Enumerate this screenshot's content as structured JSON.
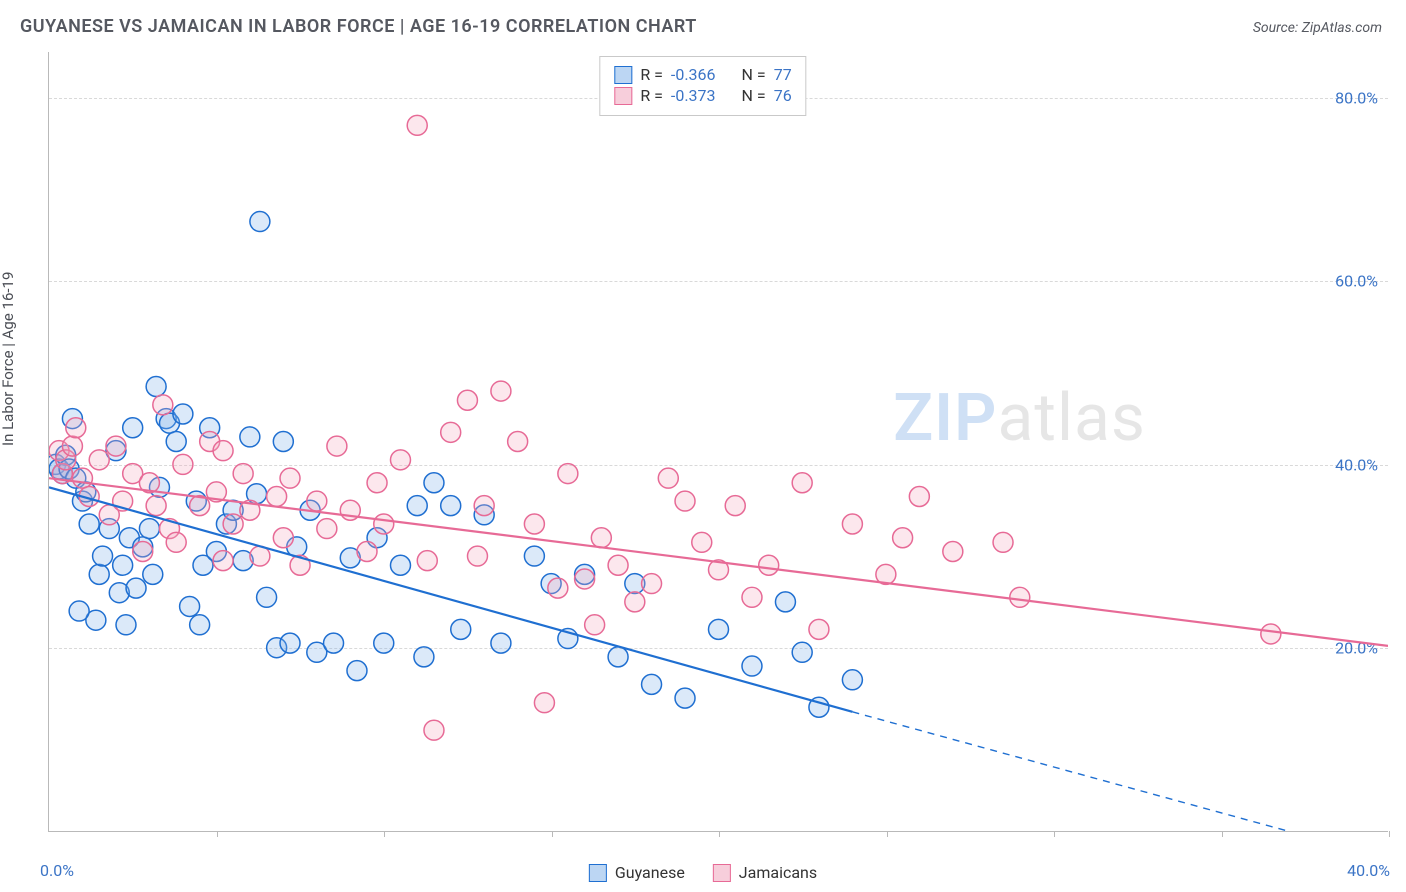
{
  "title": "GUYANESE VS JAMAICAN IN LABOR FORCE | AGE 16-19 CORRELATION CHART",
  "source_label": "Source:",
  "source_value": "ZipAtlas.com",
  "y_axis_title": "In Labor Force | Age 16-19",
  "watermark_a": "ZIP",
  "watermark_b": "atlas",
  "chart": {
    "type": "scatter",
    "background_color": "#ffffff",
    "grid_color": "#d9d9d9",
    "axis_color": "#b9b9b9",
    "tick_label_color": "#3b74c6",
    "tick_label_fontsize": 16,
    "title_color": "#555860",
    "title_fontsize": 18,
    "xlim": [
      0,
      40
    ],
    "ylim": [
      0,
      85
    ],
    "x_min_label": "0.0%",
    "x_max_label": "40.0%",
    "x_ticks": [
      5,
      10,
      15,
      20,
      25,
      30,
      35,
      40
    ],
    "y_gridlines": [
      {
        "value": 20,
        "label": "20.0%"
      },
      {
        "value": 40,
        "label": "40.0%"
      },
      {
        "value": 60,
        "label": "60.0%"
      },
      {
        "value": 80,
        "label": "80.0%"
      }
    ],
    "marker_radius": 10,
    "marker_stroke_width": 1.5,
    "marker_fill_opacity": 0.28,
    "trend_line_width": 2.2,
    "series": [
      {
        "id": "guyanese",
        "label": "Guyanese",
        "stroke": "#1f6fd1",
        "fill": "#7fb1ea",
        "line_color": "#1f6fd1",
        "points": [
          [
            0.2,
            40
          ],
          [
            0.3,
            39.5
          ],
          [
            0.5,
            41
          ],
          [
            0.4,
            39
          ],
          [
            0.6,
            39.5
          ],
          [
            0.7,
            45
          ],
          [
            0.8,
            38.5
          ],
          [
            1.0,
            36
          ],
          [
            1.1,
            37
          ],
          [
            1.2,
            33.5
          ],
          [
            1.4,
            23
          ],
          [
            1.5,
            28
          ],
          [
            1.6,
            30
          ],
          [
            1.8,
            33
          ],
          [
            2.0,
            41.5
          ],
          [
            2.1,
            26
          ],
          [
            2.2,
            29
          ],
          [
            2.3,
            22.5
          ],
          [
            2.4,
            32
          ],
          [
            2.5,
            44
          ],
          [
            2.6,
            26.5
          ],
          [
            2.8,
            31
          ],
          [
            0.9,
            24
          ],
          [
            3.0,
            33
          ],
          [
            3.1,
            28
          ],
          [
            3.2,
            48.5
          ],
          [
            3.3,
            37.5
          ],
          [
            3.5,
            45
          ],
          [
            3.6,
            44.5
          ],
          [
            3.8,
            42.5
          ],
          [
            4.0,
            45.5
          ],
          [
            4.2,
            24.5
          ],
          [
            4.4,
            36
          ],
          [
            4.5,
            22.5
          ],
          [
            4.6,
            29
          ],
          [
            4.8,
            44
          ],
          [
            5.0,
            30.5
          ],
          [
            5.3,
            33.5
          ],
          [
            5.5,
            35
          ],
          [
            5.8,
            29.5
          ],
          [
            6.0,
            43
          ],
          [
            6.2,
            36.8
          ],
          [
            6.3,
            66.5
          ],
          [
            6.5,
            25.5
          ],
          [
            6.8,
            20
          ],
          [
            7.0,
            42.5
          ],
          [
            7.2,
            20.5
          ],
          [
            7.4,
            31
          ],
          [
            7.8,
            35
          ],
          [
            8.0,
            19.5
          ],
          [
            8.5,
            20.5
          ],
          [
            9.0,
            29.8
          ],
          [
            9.2,
            17.5
          ],
          [
            9.8,
            32
          ],
          [
            10.0,
            20.5
          ],
          [
            10.5,
            29
          ],
          [
            11.0,
            35.5
          ],
          [
            11.2,
            19
          ],
          [
            11.5,
            38
          ],
          [
            12.0,
            35.5
          ],
          [
            12.3,
            22
          ],
          [
            13.0,
            34.5
          ],
          [
            13.5,
            20.5
          ],
          [
            14.5,
            30
          ],
          [
            15.0,
            27
          ],
          [
            15.5,
            21
          ],
          [
            16.0,
            28
          ],
          [
            17.0,
            19
          ],
          [
            17.5,
            27
          ],
          [
            18.0,
            16
          ],
          [
            19.0,
            14.5
          ],
          [
            20.0,
            22
          ],
          [
            21.0,
            18
          ],
          [
            22.0,
            25
          ],
          [
            23.0,
            13.5
          ],
          [
            24.0,
            16.5
          ],
          [
            22.5,
            19.5
          ]
        ],
        "trend": {
          "x0": 0,
          "y0": 37.5,
          "x1": 24,
          "y1": 13,
          "x_dash_end": 40,
          "y_dash_end": -3
        }
      },
      {
        "id": "jamaicans",
        "label": "Jamaicans",
        "stroke": "#e76a96",
        "fill": "#f4a8be",
        "line_color": "#e76a96",
        "points": [
          [
            0.3,
            41.5
          ],
          [
            0.4,
            39
          ],
          [
            0.5,
            40.5
          ],
          [
            0.7,
            42
          ],
          [
            0.8,
            44
          ],
          [
            1.0,
            38.5
          ],
          [
            1.2,
            36.5
          ],
          [
            1.5,
            40.5
          ],
          [
            1.8,
            34.5
          ],
          [
            2.0,
            42
          ],
          [
            2.2,
            36
          ],
          [
            2.5,
            39
          ],
          [
            2.8,
            30.5
          ],
          [
            3.0,
            38
          ],
          [
            3.2,
            35.5
          ],
          [
            3.4,
            46.5
          ],
          [
            3.6,
            33
          ],
          [
            3.8,
            31.5
          ],
          [
            4.0,
            40
          ],
          [
            4.5,
            35.5
          ],
          [
            4.8,
            42.5
          ],
          [
            5.0,
            37
          ],
          [
            5.2,
            29.5
          ],
          [
            5.5,
            33.5
          ],
          [
            5.8,
            39
          ],
          [
            6.0,
            35
          ],
          [
            6.3,
            30
          ],
          [
            6.8,
            36.5
          ],
          [
            7.0,
            32
          ],
          [
            7.2,
            38.5
          ],
          [
            7.5,
            29
          ],
          [
            8.0,
            36
          ],
          [
            8.3,
            33
          ],
          [
            8.6,
            42
          ],
          [
            9.0,
            35
          ],
          [
            9.5,
            30.5
          ],
          [
            9.8,
            38
          ],
          [
            10.0,
            33.5
          ],
          [
            10.5,
            40.5
          ],
          [
            11.0,
            77
          ],
          [
            11.3,
            29.5
          ],
          [
            12.0,
            43.5
          ],
          [
            12.5,
            47
          ],
          [
            12.8,
            30
          ],
          [
            13.0,
            35.5
          ],
          [
            13.5,
            48
          ],
          [
            14.0,
            42.5
          ],
          [
            14.5,
            33.5
          ],
          [
            15.5,
            39
          ],
          [
            16.0,
            27.5
          ],
          [
            16.5,
            32
          ],
          [
            17.0,
            29
          ],
          [
            17.5,
            25
          ],
          [
            18.0,
            27
          ],
          [
            18.5,
            38.5
          ],
          [
            19.0,
            36
          ],
          [
            19.5,
            31.5
          ],
          [
            20.0,
            28.5
          ],
          [
            20.5,
            35.5
          ],
          [
            21.0,
            25.5
          ],
          [
            21.5,
            29
          ],
          [
            22.5,
            38
          ],
          [
            23.0,
            22
          ],
          [
            24.0,
            33.5
          ],
          [
            25.0,
            28
          ],
          [
            25.5,
            32
          ],
          [
            26.0,
            36.5
          ],
          [
            27.0,
            30.5
          ],
          [
            28.5,
            31.5
          ],
          [
            29.0,
            25.5
          ],
          [
            5.2,
            41.5
          ],
          [
            11.5,
            11
          ],
          [
            14.8,
            14
          ],
          [
            15.2,
            26.5
          ],
          [
            16.3,
            22.5
          ],
          [
            36.5,
            21.5
          ]
        ],
        "trend": {
          "x0": 0,
          "y0": 38.5,
          "x1": 40,
          "y1": 20.2
        }
      }
    ]
  },
  "legend_top": {
    "border_color": "#c9c9c9",
    "rows": [
      {
        "swatch_fill": "#bcd6f3",
        "swatch_stroke": "#1f6fd1",
        "r_label": "R =",
        "r_value": "-0.366",
        "n_label": "N =",
        "n_value": "77"
      },
      {
        "swatch_fill": "#f7cedb",
        "swatch_stroke": "#e76a96",
        "r_label": "R =",
        "r_value": "-0.373",
        "n_label": "N =",
        "n_value": "76"
      }
    ]
  },
  "legend_bottom": {
    "items": [
      {
        "swatch_fill": "#bcd6f3",
        "swatch_stroke": "#1f6fd1",
        "label": "Guyanese"
      },
      {
        "swatch_fill": "#f7cedb",
        "swatch_stroke": "#e76a96",
        "label": "Jamaicans"
      }
    ]
  }
}
